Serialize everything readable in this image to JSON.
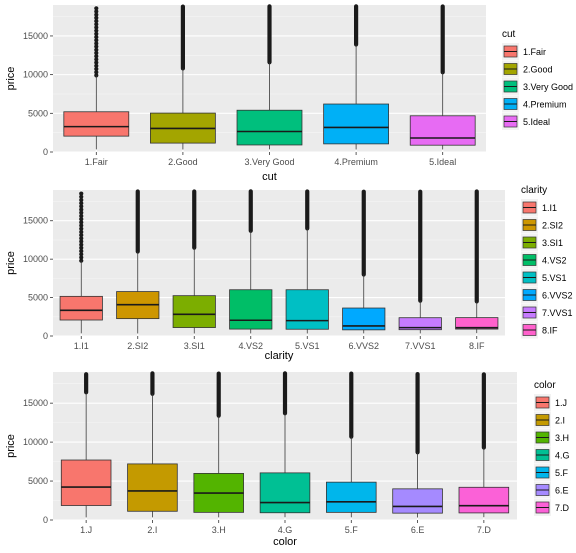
{
  "chart_data": [
    {
      "type": "boxplot",
      "xlabel": "cut",
      "ylabel": "price",
      "ylim": [
        0,
        19000
      ],
      "yticks": [
        0,
        5000,
        10000,
        15000
      ],
      "grid": true,
      "legend": {
        "title": "cut",
        "position": "right"
      },
      "categories": [
        "1.Fair",
        "2.Good",
        "3.Very Good",
        "4.Premium",
        "5.Ideal"
      ],
      "colors": [
        "#F8766D",
        "#A3A500",
        "#00BF7D",
        "#00B0F6",
        "#E76BF3"
      ],
      "boxes": [
        {
          "low": 337,
          "q1": 2050,
          "median": 3280,
          "q3": 5200,
          "high": 9900,
          "outliers_from": 9900,
          "outliers_to": 18570,
          "outliers_dense": false
        },
        {
          "low": 327,
          "q1": 1150,
          "median": 3050,
          "q3": 5030,
          "high": 10800,
          "outliers_from": 10800,
          "outliers_to": 18790,
          "outliers_dense": true
        },
        {
          "low": 336,
          "q1": 910,
          "median": 2650,
          "q3": 5400,
          "high": 11600,
          "outliers_from": 11600,
          "outliers_to": 18820,
          "outliers_dense": true
        },
        {
          "low": 326,
          "q1": 1050,
          "median": 3180,
          "q3": 6200,
          "high": 13900,
          "outliers_from": 13900,
          "outliers_to": 18820,
          "outliers_dense": true
        },
        {
          "low": 326,
          "q1": 880,
          "median": 1810,
          "q3": 4680,
          "high": 10300,
          "outliers_from": 10300,
          "outliers_to": 18810,
          "outliers_dense": true
        }
      ]
    },
    {
      "type": "boxplot",
      "xlabel": "clarity",
      "ylabel": "price",
      "ylim": [
        0,
        19000
      ],
      "yticks": [
        0,
        5000,
        10000,
        15000
      ],
      "grid": true,
      "legend": {
        "title": "clarity",
        "position": "right"
      },
      "categories": [
        "1.I1",
        "2.SI2",
        "3.SI1",
        "4.VS2",
        "5.VS1",
        "6.VVS2",
        "7.VVS1",
        "8.IF"
      ],
      "colors": [
        "#F8766D",
        "#CD9600",
        "#7CAE00",
        "#00BE67",
        "#00BFC4",
        "#00A9FF",
        "#C77CFF",
        "#FF61CC"
      ],
      "boxes": [
        {
          "low": 345,
          "q1": 2080,
          "median": 3340,
          "q3": 5160,
          "high": 9800,
          "outliers_from": 9800,
          "outliers_to": 18530,
          "outliers_dense": false
        },
        {
          "low": 326,
          "q1": 2260,
          "median": 4070,
          "q3": 5780,
          "high": 11000,
          "outliers_from": 11000,
          "outliers_to": 18800,
          "outliers_dense": true
        },
        {
          "low": 326,
          "q1": 1100,
          "median": 2820,
          "q3": 5250,
          "high": 11500,
          "outliers_from": 11500,
          "outliers_to": 18800,
          "outliers_dense": true
        },
        {
          "low": 334,
          "q1": 900,
          "median": 2050,
          "q3": 6020,
          "high": 13700,
          "outliers_from": 13700,
          "outliers_to": 18820,
          "outliers_dense": true
        },
        {
          "low": 327,
          "q1": 880,
          "median": 2000,
          "q3": 6020,
          "high": 14000,
          "outliers_from": 14000,
          "outliers_to": 18800,
          "outliers_dense": true
        },
        {
          "low": 336,
          "q1": 800,
          "median": 1310,
          "q3": 3640,
          "high": 8000,
          "outliers_from": 8000,
          "outliers_to": 18770,
          "outliers_dense": true
        },
        {
          "low": 336,
          "q1": 820,
          "median": 1090,
          "q3": 2380,
          "high": 4600,
          "outliers_from": 4600,
          "outliers_to": 18770,
          "outliers_dense": true
        },
        {
          "low": 369,
          "q1": 900,
          "median": 1080,
          "q3": 2390,
          "high": 4500,
          "outliers_from": 4500,
          "outliers_to": 18810,
          "outliers_dense": true
        }
      ]
    },
    {
      "type": "boxplot",
      "xlabel": "color",
      "ylabel": "price",
      "ylim": [
        0,
        19000
      ],
      "yticks": [
        0,
        5000,
        10000,
        15000
      ],
      "grid": true,
      "legend": {
        "title": "color",
        "position": "right"
      },
      "categories": [
        "1.J",
        "2.I",
        "3.H",
        "4.G",
        "5.F",
        "6.E",
        "7.D"
      ],
      "colors": [
        "#F8766D",
        "#C49A00",
        "#53B400",
        "#00C094",
        "#00B6EB",
        "#A58AFF",
        "#FB61D7"
      ],
      "boxes": [
        {
          "low": 335,
          "q1": 1860,
          "median": 4230,
          "q3": 7700,
          "high": 16400,
          "outliers_from": 16400,
          "outliers_to": 18710,
          "outliers_dense": true
        },
        {
          "low": 334,
          "q1": 1120,
          "median": 3730,
          "q3": 7200,
          "high": 16200,
          "outliers_from": 16200,
          "outliers_to": 18820,
          "outliers_dense": true
        },
        {
          "low": 337,
          "q1": 980,
          "median": 3460,
          "q3": 5980,
          "high": 13400,
          "outliers_from": 13400,
          "outliers_to": 18800,
          "outliers_dense": true
        },
        {
          "low": 354,
          "q1": 930,
          "median": 2240,
          "q3": 6050,
          "high": 13700,
          "outliers_from": 13700,
          "outliers_to": 18820,
          "outliers_dense": true
        },
        {
          "low": 342,
          "q1": 980,
          "median": 2340,
          "q3": 4860,
          "high": 10700,
          "outliers_from": 10700,
          "outliers_to": 18790,
          "outliers_dense": true
        },
        {
          "low": 326,
          "q1": 880,
          "median": 1740,
          "q3": 4000,
          "high": 8700,
          "outliers_from": 8700,
          "outliers_to": 18730,
          "outliers_dense": true
        },
        {
          "low": 357,
          "q1": 910,
          "median": 1840,
          "q3": 4200,
          "high": 9300,
          "outliers_from": 9300,
          "outliers_to": 18700,
          "outliers_dense": true
        }
      ]
    }
  ]
}
